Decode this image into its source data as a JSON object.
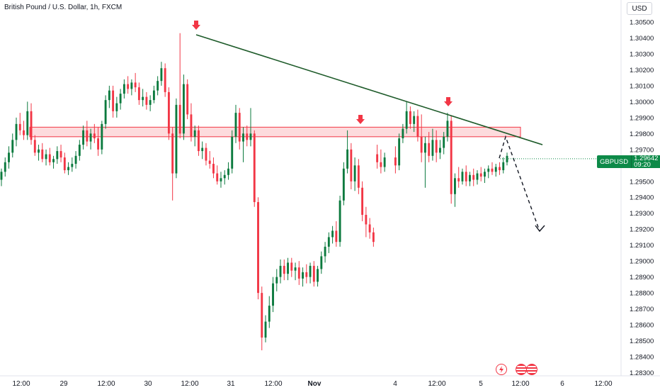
{
  "header": {
    "title": "British Pound / U.S. Dollar, 1h, FXCM",
    "currency_button": "USD"
  },
  "price_label": {
    "symbol": "GBPUSD",
    "price": "1.29642",
    "countdown": "09:20"
  },
  "colors": {
    "up": "#089981",
    "up_body": "#0b7a3e",
    "down": "#f23645",
    "trendline": "#1e5b2a",
    "zone_fill": "rgba(242,54,69,0.18)",
    "zone_border": "#f23645",
    "arrow": "#f23645"
  },
  "icons": [
    "lightning-event-icon",
    "us-flag-event-icon",
    "us-flag-event-icon"
  ],
  "chart_data": {
    "type": "candlestick",
    "title": "British Pound / U.S. Dollar, 1h, FXCM",
    "ylim": [
      1.2828,
      1.3054
    ],
    "y_ticks": [
      "1.30500",
      "1.30400",
      "1.30300",
      "1.30200",
      "1.30100",
      "1.30000",
      "1.29900",
      "1.29800",
      "1.29700",
      "1.29600",
      "1.29500",
      "1.29400",
      "1.29300",
      "1.29200",
      "1.29100",
      "1.29000",
      "1.28900",
      "1.28800",
      "1.28700",
      "1.28600",
      "1.28500",
      "1.28400",
      "1.28300"
    ],
    "x_ticks": [
      {
        "label": "12:00",
        "bold": false
      },
      {
        "label": "29",
        "bold": false
      },
      {
        "label": "12:00",
        "bold": false
      },
      {
        "label": "30",
        "bold": false
      },
      {
        "label": "12:00",
        "bold": false
      },
      {
        "label": "31",
        "bold": false
      },
      {
        "label": "12:00",
        "bold": false
      },
      {
        "label": "Nov",
        "bold": true
      },
      {
        "label": "4",
        "bold": false
      },
      {
        "label": "12:00",
        "bold": false
      },
      {
        "label": "5",
        "bold": false
      },
      {
        "label": "12:00",
        "bold": false
      },
      {
        "label": "6",
        "bold": false
      },
      {
        "label": "12:00",
        "bold": false
      }
    ],
    "ohlc": [
      [
        1.2951,
        1.2958,
        1.2947,
        1.2956
      ],
      [
        1.2956,
        1.2965,
        1.2953,
        1.2962
      ],
      [
        1.2962,
        1.2972,
        1.2958,
        1.2968
      ],
      [
        1.2968,
        1.298,
        1.2965,
        1.2976
      ],
      [
        1.2976,
        1.299,
        1.2972,
        1.2986
      ],
      [
        1.2986,
        1.2993,
        1.2979,
        1.2982
      ],
      [
        1.2982,
        1.2988,
        1.2976,
        1.2979
      ],
      [
        1.2979,
        1.3,
        1.2976,
        1.2994
      ],
      [
        1.2994,
        1.2999,
        1.2973,
        1.2976
      ],
      [
        1.2976,
        1.2979,
        1.2966,
        1.2968
      ],
      [
        1.2968,
        1.2973,
        1.2963,
        1.297
      ],
      [
        1.297,
        1.2974,
        1.2962,
        1.2964
      ],
      [
        1.2964,
        1.297,
        1.296,
        1.2967
      ],
      [
        1.2967,
        1.2971,
        1.296,
        1.2962
      ],
      [
        1.2962,
        1.2966,
        1.2958,
        1.2964
      ],
      [
        1.2964,
        1.2972,
        1.2961,
        1.2969
      ],
      [
        1.2969,
        1.2973,
        1.2962,
        1.2965
      ],
      [
        1.2965,
        1.2968,
        1.2955,
        1.2957
      ],
      [
        1.2957,
        1.2962,
        1.2954,
        1.2959
      ],
      [
        1.2959,
        1.2965,
        1.2956,
        1.2961
      ],
      [
        1.2961,
        1.2969,
        1.2958,
        1.2966
      ],
      [
        1.2966,
        1.2976,
        1.2963,
        1.2973
      ],
      [
        1.2973,
        1.2985,
        1.297,
        1.2982
      ],
      [
        1.2982,
        1.2988,
        1.2972,
        1.2975
      ],
      [
        1.2975,
        1.2983,
        1.297,
        1.298
      ],
      [
        1.298,
        1.2986,
        1.2974,
        1.2977
      ],
      [
        1.2977,
        1.2984,
        1.2966,
        1.297
      ],
      [
        1.297,
        1.2988,
        1.2967,
        1.2986
      ],
      [
        1.2986,
        1.3004,
        1.2983,
        1.3001
      ],
      [
        1.3001,
        1.301,
        1.2996,
        1.3007
      ],
      [
        1.3007,
        1.301,
        1.299,
        1.2994
      ],
      [
        1.2994,
        1.3003,
        1.299,
        1.2999
      ],
      [
        1.2999,
        1.3008,
        1.2995,
        1.3005
      ],
      [
        1.3005,
        1.3014,
        1.3002,
        1.3011
      ],
      [
        1.3011,
        1.3016,
        1.3005,
        1.3008
      ],
      [
        1.3008,
        1.3014,
        1.3004,
        1.3012
      ],
      [
        1.3012,
        1.3018,
        1.3006,
        1.3009
      ],
      [
        1.3009,
        1.3012,
        1.2998,
        1.3001
      ],
      [
        1.3001,
        1.3008,
        1.2997,
        1.3003
      ],
      [
        1.3003,
        1.3006,
        1.2995,
        1.2998
      ],
      [
        1.2998,
        1.3004,
        1.2994,
        1.3001
      ],
      [
        1.3001,
        1.301,
        1.2999,
        1.3007
      ],
      [
        1.3007,
        1.3016,
        1.3004,
        1.3013
      ],
      [
        1.3013,
        1.3025,
        1.301,
        1.3021
      ],
      [
        1.3021,
        1.3024,
        1.3003,
        1.3006
      ],
      [
        1.3006,
        1.3009,
        1.2976,
        1.298
      ],
      [
        1.298,
        1.2984,
        1.2938,
        1.2955
      ],
      [
        1.2955,
        1.3002,
        1.2952,
        1.2998
      ],
      [
        1.2998,
        1.3043,
        1.2977,
        1.298
      ],
      [
        1.298,
        1.3017,
        1.2976,
        1.3011
      ],
      [
        1.3011,
        1.3014,
        1.2989,
        1.2992
      ],
      [
        1.2992,
        1.2999,
        1.2975,
        1.2978
      ],
      [
        1.2978,
        1.2985,
        1.2972,
        1.2982
      ],
      [
        1.2982,
        1.2985,
        1.2966,
        1.2969
      ],
      [
        1.2969,
        1.2975,
        1.2964,
        1.2971
      ],
      [
        1.2971,
        1.2974,
        1.296,
        1.2963
      ],
      [
        1.2963,
        1.2969,
        1.2958,
        1.2961
      ],
      [
        1.2961,
        1.2965,
        1.2952,
        1.2955
      ],
      [
        1.2955,
        1.296,
        1.2948,
        1.295
      ],
      [
        1.295,
        1.2956,
        1.2946,
        1.2952
      ],
      [
        1.2952,
        1.2957,
        1.2948,
        1.2954
      ],
      [
        1.2954,
        1.2962,
        1.2951,
        1.2958
      ],
      [
        1.2958,
        1.2982,
        1.2955,
        1.2978
      ],
      [
        1.2978,
        1.2998,
        1.2974,
        1.2993
      ],
      [
        1.2993,
        1.2996,
        1.297,
        1.2975
      ],
      [
        1.2975,
        1.2984,
        1.2962,
        1.298
      ],
      [
        1.298,
        1.2985,
        1.2972,
        1.2976
      ],
      [
        1.2976,
        1.2996,
        1.2972,
        1.298
      ],
      [
        1.298,
        1.2982,
        1.2934,
        1.2937
      ],
      [
        1.2937,
        1.294,
        1.2876,
        1.288
      ],
      [
        1.288,
        1.2884,
        1.2844,
        1.2852
      ],
      [
        1.2852,
        1.2866,
        1.2849,
        1.2862
      ],
      [
        1.2862,
        1.2878,
        1.2858,
        1.2872
      ],
      [
        1.2872,
        1.289,
        1.2868,
        1.2886
      ],
      [
        1.2886,
        1.2895,
        1.2881,
        1.289
      ],
      [
        1.289,
        1.2901,
        1.2886,
        1.2897
      ],
      [
        1.2897,
        1.2901,
        1.2888,
        1.2892
      ],
      [
        1.2892,
        1.2902,
        1.2888,
        1.2899
      ],
      [
        1.2899,
        1.2902,
        1.289,
        1.2894
      ],
      [
        1.2894,
        1.2899,
        1.2888,
        1.2896
      ],
      [
        1.2896,
        1.29,
        1.2885,
        1.2889
      ],
      [
        1.2889,
        1.2896,
        1.2884,
        1.2893
      ],
      [
        1.2893,
        1.2898,
        1.2886,
        1.289
      ],
      [
        1.289,
        1.2899,
        1.2886,
        1.2897
      ],
      [
        1.2897,
        1.29,
        1.2884,
        1.2887
      ],
      [
        1.2887,
        1.2897,
        1.2884,
        1.2895
      ],
      [
        1.2895,
        1.2906,
        1.2892,
        1.2903
      ],
      [
        1.2903,
        1.2912,
        1.2899,
        1.2909
      ],
      [
        1.2909,
        1.2918,
        1.2905,
        1.2915
      ],
      [
        1.2915,
        1.2922,
        1.2911,
        1.2919
      ],
      [
        1.2919,
        1.2925,
        1.2909,
        1.2912
      ],
      [
        1.2912,
        1.2941,
        1.2909,
        1.2938
      ],
      [
        1.2938,
        1.2962,
        1.2935,
        1.2958
      ],
      [
        1.2958,
        1.2982,
        1.2955,
        1.297
      ],
      [
        1.297,
        1.2974,
        1.2945,
        1.295
      ],
      [
        1.295,
        1.2965,
        1.2944,
        1.296
      ],
      [
        1.296,
        1.2964,
        1.2942,
        1.2946
      ],
      [
        1.2946,
        1.295,
        1.2925,
        1.2929
      ],
      [
        1.2929,
        1.2934,
        1.2915,
        1.2923
      ],
      [
        1.2923,
        1.2927,
        1.2914,
        1.2918
      ],
      [
        1.2918,
        1.2921,
        1.2909,
        1.2912
      ],
      [
        1.2967,
        1.2973,
        1.2958,
        1.2962
      ],
      [
        1.2962,
        1.297,
        1.2955,
        1.2959
      ],
      [
        1.2959,
        1.2968,
        1.2956,
        1.2965
      ],
      [
        1.2965,
        1.2972,
        1.2955,
        1.296
      ],
      [
        1.296,
        1.298,
        1.2957,
        1.2977
      ],
      [
        1.2977,
        1.2986,
        1.2974,
        1.2983
      ],
      [
        1.2983,
        1.3,
        1.298,
        1.2994
      ],
      [
        1.2994,
        1.2997,
        1.2983,
        1.2986
      ],
      [
        1.2986,
        1.2994,
        1.2981,
        1.2991
      ],
      [
        1.2991,
        1.2995,
        1.2975,
        1.2978
      ],
      [
        1.2978,
        1.2992,
        1.2962,
        1.2968
      ],
      [
        1.2968,
        1.2978,
        1.2946,
        1.2974
      ],
      [
        1.2974,
        1.2981,
        1.2962,
        1.2966
      ],
      [
        1.2966,
        1.2983,
        1.2963,
        1.2976
      ],
      [
        1.2976,
        1.2982,
        1.2962,
        1.2968
      ],
      [
        1.2968,
        1.2976,
        1.2964,
        1.2971
      ],
      [
        1.2971,
        1.2981,
        1.2967,
        1.2978
      ],
      [
        1.2978,
        1.2993,
        1.2975,
        1.2988
      ],
      [
        1.2988,
        1.2991,
        1.2936,
        1.2942
      ],
      [
        1.2942,
        1.2955,
        1.2934,
        1.2952
      ],
      [
        1.2952,
        1.2959,
        1.2946,
        1.295
      ],
      [
        1.295,
        1.2958,
        1.2948,
        1.2956
      ],
      [
        1.2956,
        1.296,
        1.2947,
        1.295
      ],
      [
        1.295,
        1.2956,
        1.2947,
        1.2954
      ],
      [
        1.2954,
        1.2958,
        1.2947,
        1.2951
      ],
      [
        1.2951,
        1.2957,
        1.2948,
        1.2955
      ],
      [
        1.2955,
        1.2959,
        1.295,
        1.2953
      ],
      [
        1.2953,
        1.2958,
        1.2949,
        1.2956
      ],
      [
        1.2956,
        1.296,
        1.2952,
        1.2958
      ],
      [
        1.2958,
        1.2962,
        1.2954,
        1.2956
      ],
      [
        1.2956,
        1.2961,
        1.2953,
        1.2959
      ],
      [
        1.2959,
        1.2962,
        1.2954,
        1.2957
      ],
      [
        1.2957,
        1.2965,
        1.2955,
        1.2962
      ],
      [
        1.2962,
        1.2968,
        1.296,
        1.2966
      ]
    ],
    "resistance_zone": {
      "from": 1.2978,
      "to": 1.2984
    },
    "trendline": {
      "from_price": 1.3042,
      "to_price": 1.2973
    }
  }
}
